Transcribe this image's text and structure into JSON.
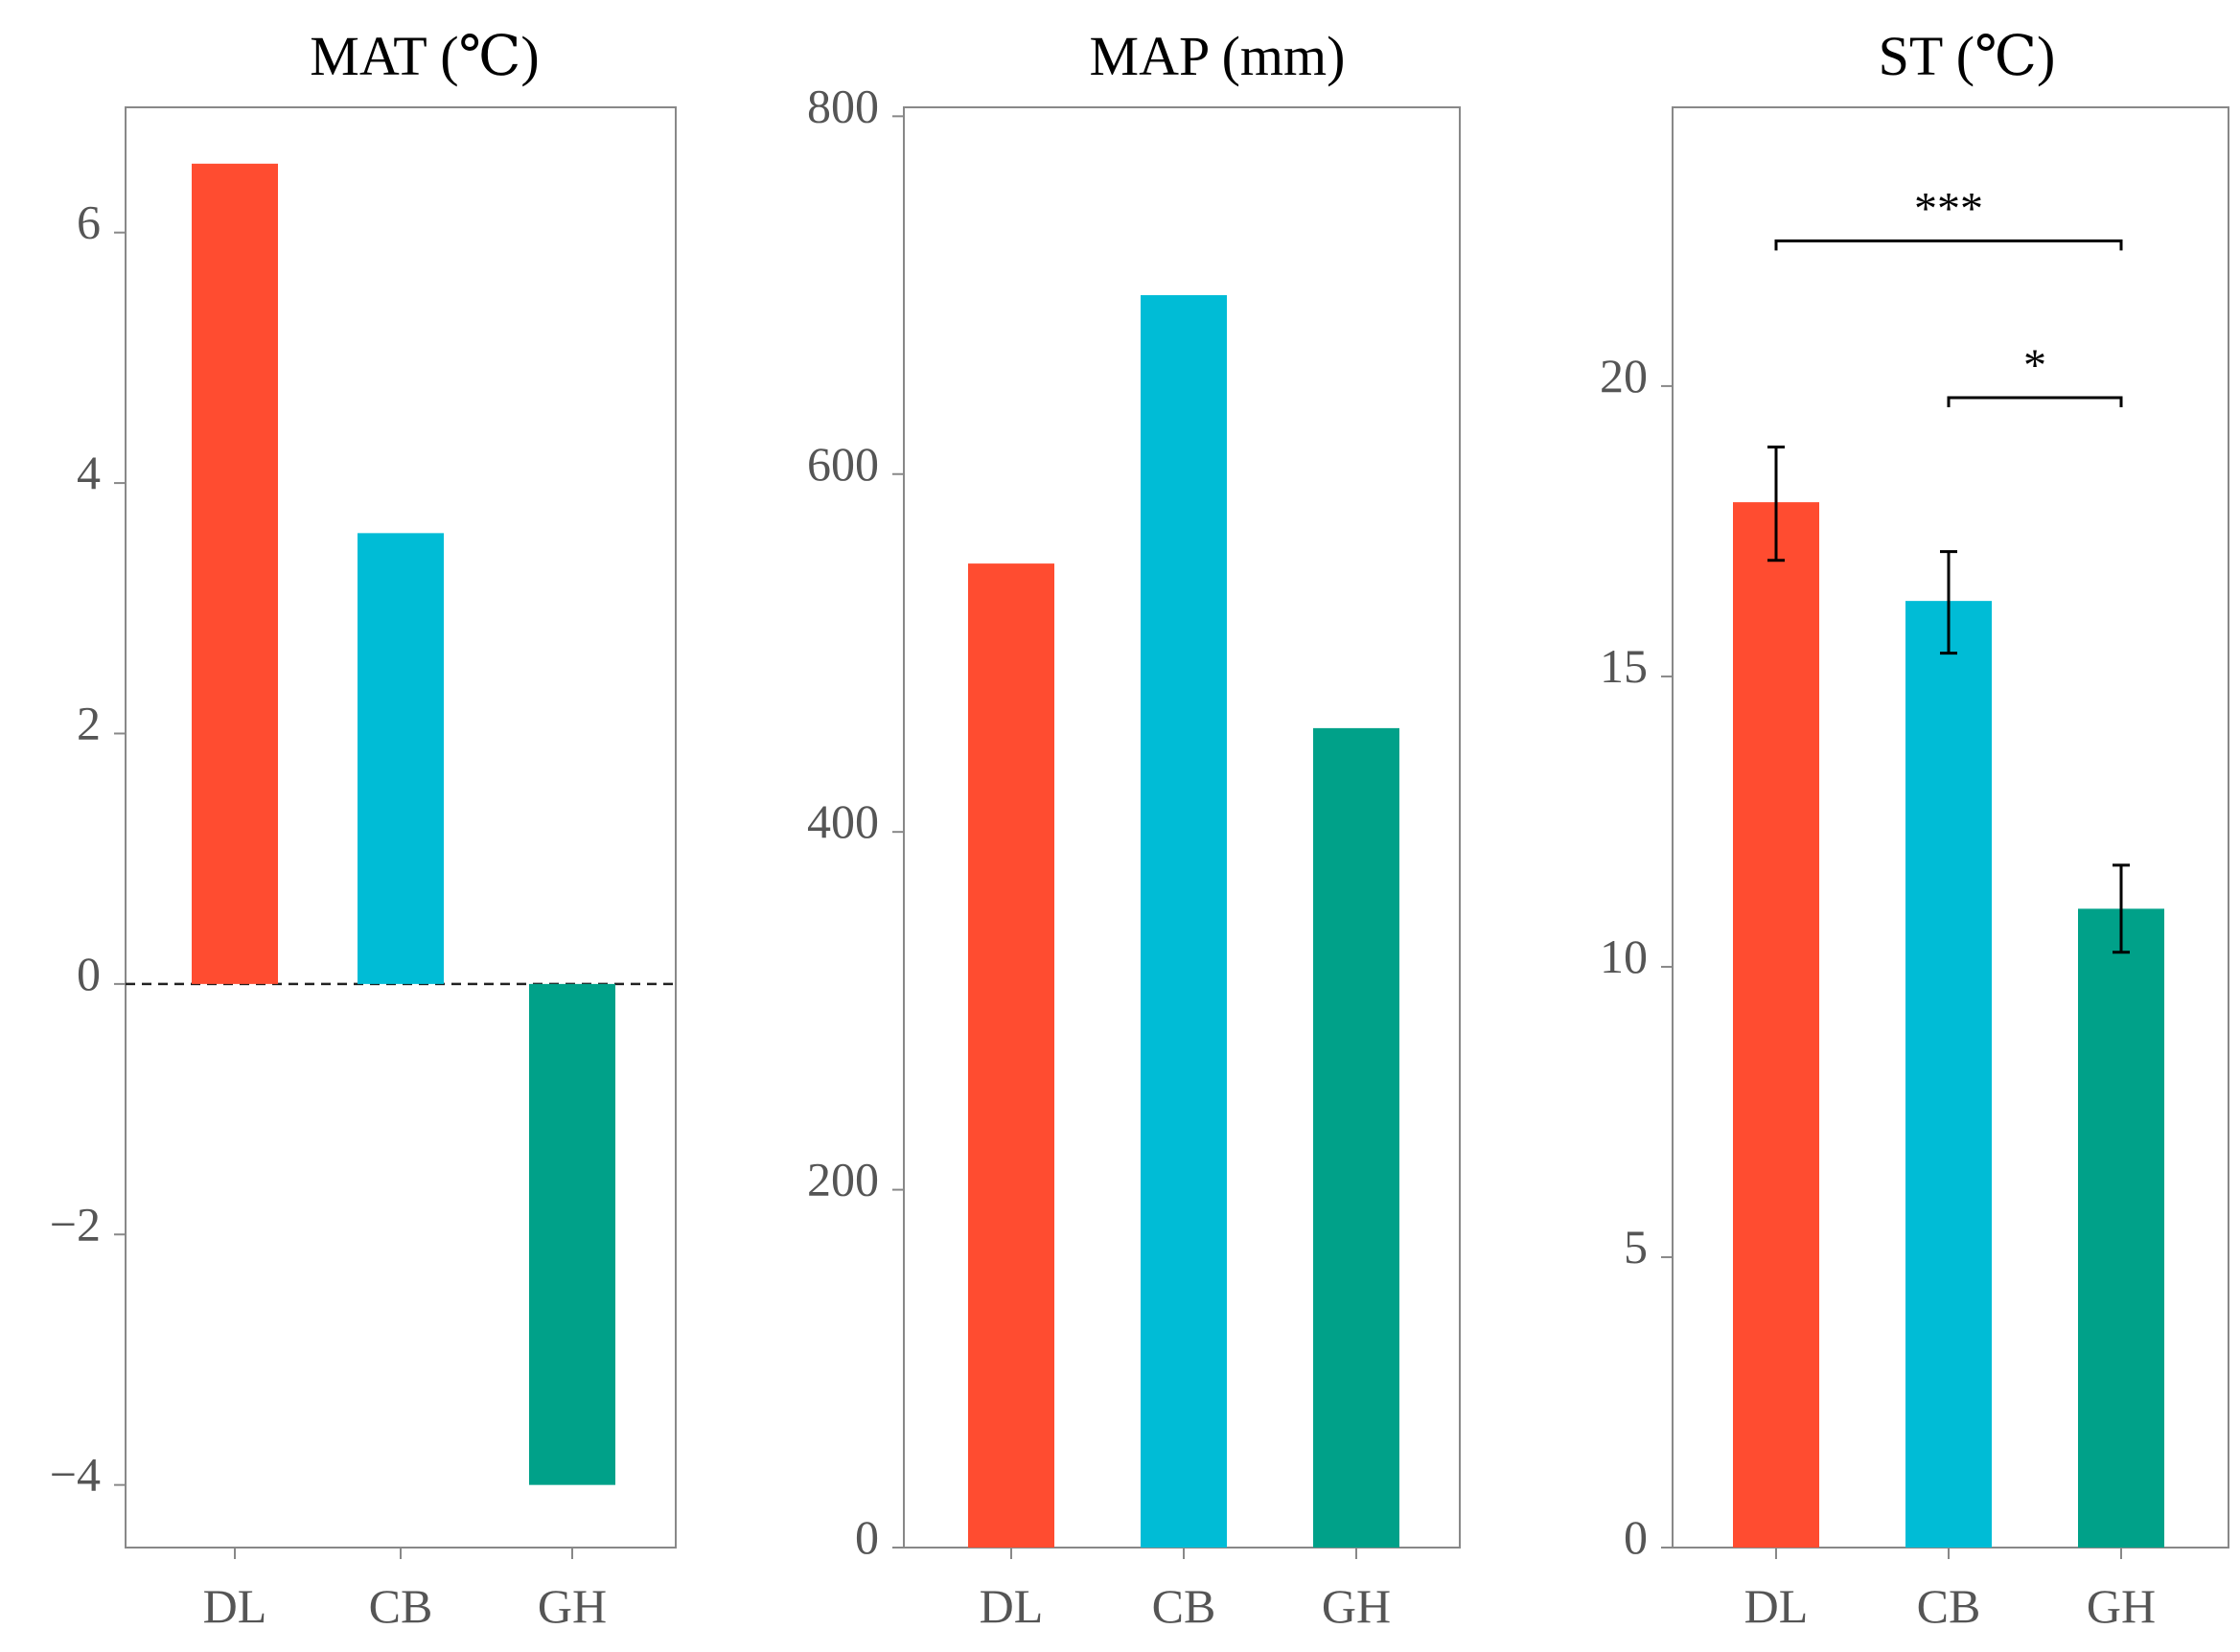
{
  "chart_data": [
    {
      "type": "bar",
      "title": "MAT (℃)",
      "categories": [
        "DL",
        "CB",
        "GH"
      ],
      "values": [
        6.55,
        3.6,
        -4.0
      ],
      "colors": [
        "#ff4c30",
        "#00bcd6",
        "#00a189"
      ],
      "ylim": [
        -4.5,
        7.0
      ],
      "yticks": [
        6,
        4,
        2,
        0,
        -2,
        -4
      ],
      "ytick_labels": [
        "6",
        "4",
        "2",
        "0",
        "−2",
        "−4"
      ],
      "zero_line": "dashed",
      "xlabel": "",
      "ylabel": ""
    },
    {
      "type": "bar",
      "title": "MAP (mm)",
      "categories": [
        "DL",
        "CB",
        "GH"
      ],
      "values": [
        550,
        700,
        458
      ],
      "colors": [
        "#ff4c30",
        "#00bcd6",
        "#00a189"
      ],
      "ylim": [
        0,
        805
      ],
      "yticks": [
        800,
        600,
        400,
        200,
        0
      ],
      "ytick_labels": [
        "800",
        "600",
        "400",
        "200",
        "0"
      ],
      "xlabel": "",
      "ylabel": ""
    },
    {
      "type": "bar",
      "title": "ST (℃)",
      "categories": [
        "DL",
        "CB",
        "GH"
      ],
      "values": [
        18.0,
        16.3,
        11.0
      ],
      "errors": [
        [
          17.0,
          18.95
        ],
        [
          15.4,
          17.15
        ],
        [
          10.25,
          11.75
        ]
      ],
      "colors": [
        "#ff4c30",
        "#00bcd6",
        "#00a189"
      ],
      "ylim": [
        0,
        24.8
      ],
      "yticks": [
        20,
        15,
        10,
        5,
        0
      ],
      "ytick_labels": [
        "20",
        "15",
        "10",
        "5",
        "0"
      ],
      "significance": [
        {
          "from": "DL",
          "to": "GH",
          "level": 22.5,
          "label": "***"
        },
        {
          "from": "CB",
          "to": "GH",
          "level": 19.8,
          "label": "*"
        }
      ],
      "xlabel": "",
      "ylabel": ""
    }
  ]
}
